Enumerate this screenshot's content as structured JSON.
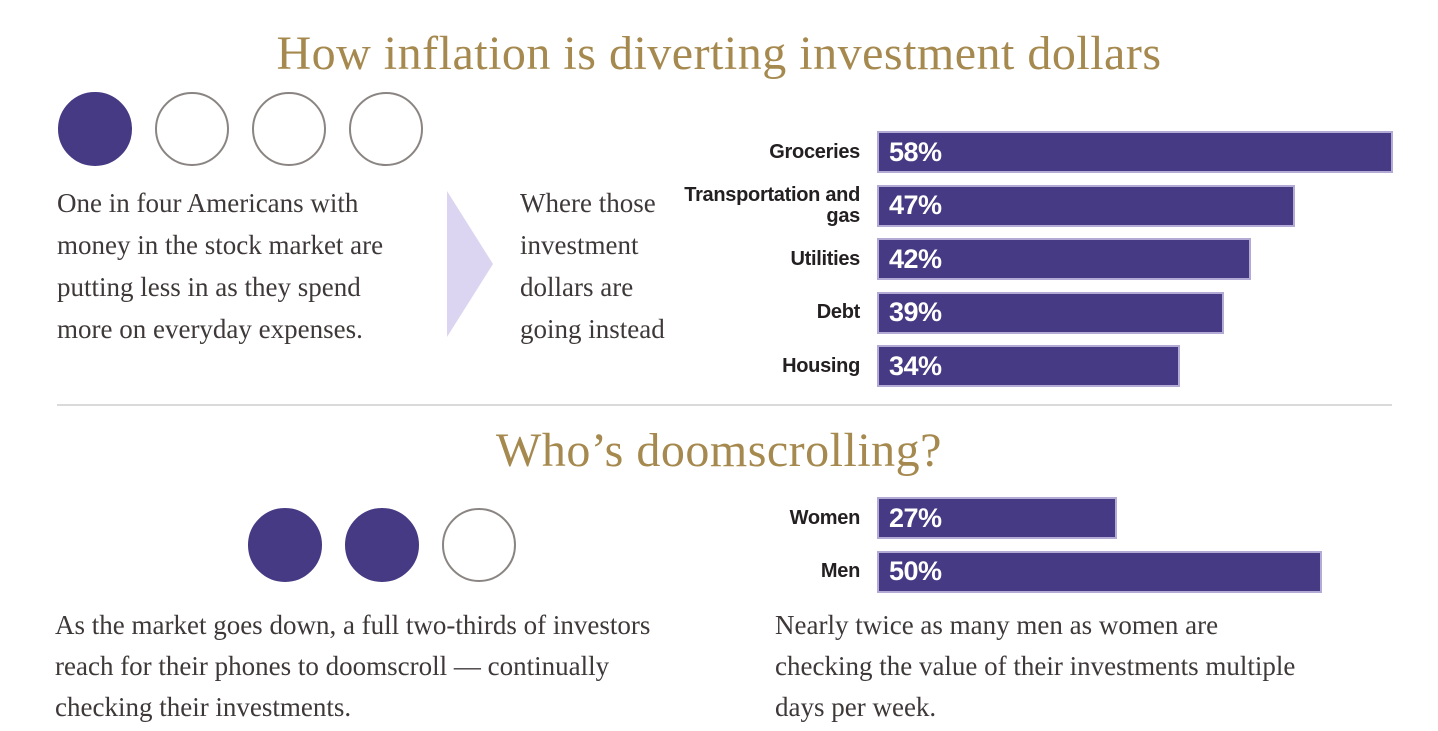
{
  "colors": {
    "accent_purple": "#453a83",
    "title_gold": "#a5894f",
    "arrow_lavender": "#dcd5f2",
    "body_text": "#3e3938",
    "label_text": "#242021",
    "circle_outline": "#8a8582",
    "divider": "#dadada",
    "bar_value_text": "#ffffff"
  },
  "section1": {
    "title": "How inflation is diverting investment dollars",
    "stat_circles": {
      "filled": 1,
      "total": 4
    },
    "description": "One in four Americans with\nmoney in the stock market are\nputting less in as they spend\nmore on everyday expenses.",
    "arrow_caption": "Where those\ninvestment\ndollars are\ngoing instead"
  },
  "section2": {
    "title": "Who’s doomscrolling?",
    "stat_circles": {
      "filled": 2,
      "total": 3
    },
    "description": "As the market goes down, a full two-thirds of investors\nreach for their phones to doomscroll — continually\nchecking their investments.",
    "note": "Nearly twice as many men as women are\nchecking the value of their investments multiple\ndays per week."
  },
  "chart_data": [
    {
      "type": "bar",
      "orientation": "horizontal",
      "title": "Where those investment dollars are going instead",
      "categories": [
        "Groceries",
        "Transportation and gas",
        "Utilities",
        "Debt",
        "Housing"
      ],
      "values": [
        58,
        47,
        42,
        39,
        34
      ],
      "value_labels": [
        "58%",
        "47%",
        "42%",
        "39%",
        "34%"
      ],
      "unit": "%",
      "xlim": [
        0,
        60
      ],
      "bar_color": "#453a83",
      "grid": false,
      "legend": false
    },
    {
      "type": "bar",
      "orientation": "horizontal",
      "title": "Who’s doomscrolling?",
      "categories": [
        "Women",
        "Men"
      ],
      "values": [
        27,
        50
      ],
      "value_labels": [
        "27%",
        "50%"
      ],
      "unit": "%",
      "xlim": [
        0,
        60
      ],
      "bar_color": "#453a83",
      "grid": false,
      "legend": false
    }
  ]
}
